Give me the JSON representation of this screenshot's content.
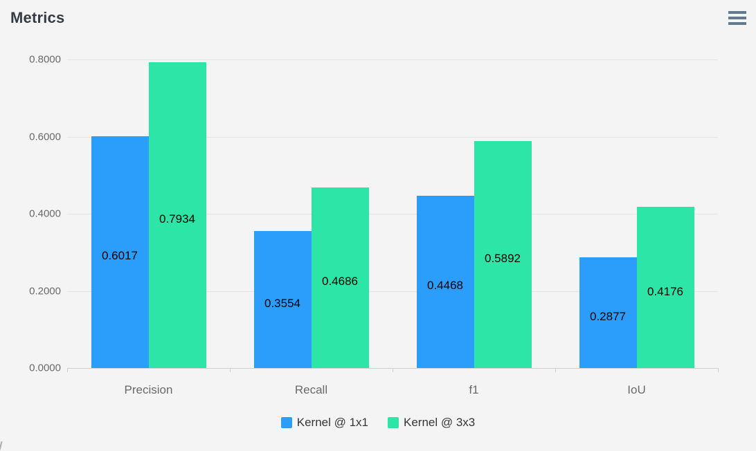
{
  "header": {
    "title": "Metrics",
    "menu_icon": "hamburger-icon"
  },
  "chart_data": {
    "type": "bar",
    "title": "Metrics",
    "categories": [
      "Precision",
      "Recall",
      "f1",
      "IoU"
    ],
    "series": [
      {
        "name": "Kernel @ 1x1",
        "color": "#2b9dfa",
        "values": [
          0.6017,
          0.3554,
          0.4468,
          0.2877
        ],
        "value_labels": [
          "0.6017",
          "0.3554",
          "0.4468",
          "0.2877"
        ]
      },
      {
        "name": "Kernel @ 3x3",
        "color": "#2ce5a6",
        "values": [
          0.7934,
          0.4686,
          0.5892,
          0.4176
        ],
        "value_labels": [
          "0.7934",
          "0.4686",
          "0.5892",
          "0.4176"
        ]
      }
    ],
    "xlabel": "",
    "ylabel": "",
    "ylim": [
      0,
      0.8
    ],
    "y_ticks": [
      {
        "value": 0.0,
        "label": "0.0000"
      },
      {
        "value": 0.2,
        "label": "0.2000"
      },
      {
        "value": 0.4,
        "label": "0.4000"
      },
      {
        "value": 0.6,
        "label": "0.6000"
      },
      {
        "value": 0.8,
        "label": "0.8000"
      }
    ],
    "grid": true,
    "legend_position": "bottom",
    "data_labels_position": "inside-center"
  },
  "colors": {
    "background": "#f5f4f4",
    "title_text": "#343b43",
    "axis_label_text": "#67696c",
    "gridline": "#e4e4e4",
    "axis_line": "#cfd0d2",
    "series_blue": "#2b9dfa",
    "series_green": "#2ce5a6",
    "menu_icon": "#64798c"
  }
}
